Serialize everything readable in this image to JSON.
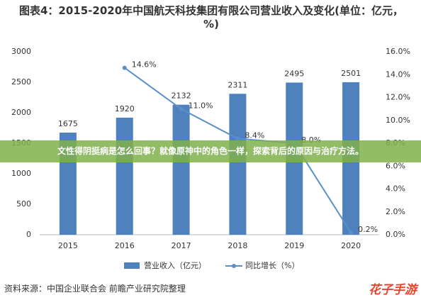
{
  "chart_data": {
    "type": "bar",
    "title": "图表4：2015-2020年中国航天科技集团有限公司营业收入及变化(单位：亿元，%)",
    "categories": [
      "2015",
      "2016",
      "2017",
      "2018",
      "2019",
      "2020"
    ],
    "series": [
      {
        "name": "营业收入（亿元）",
        "color": "#4f81bd",
        "values": [
          1675,
          1920,
          2132,
          2311,
          2495,
          2501
        ]
      },
      {
        "name": "同比增长（%）",
        "type": "line",
        "axis": "y2",
        "color": "#5b8fc9",
        "values": [
          null,
          14.6,
          11.0,
          8.4,
          8.0,
          0.2
        ],
        "value_labels": [
          null,
          "14.6%",
          "11.0%",
          "8.4%",
          "8.0%",
          "0.2%"
        ]
      }
    ],
    "ylim": [
      0,
      3000
    ],
    "yticks": [
      0,
      500,
      1000,
      1500,
      2000,
      2500,
      3000
    ],
    "y2lim": [
      0,
      16
    ],
    "y2ticks": [
      {
        "value": 0,
        "label": "0.0%"
      },
      {
        "value": 2,
        "label": "2.0%"
      },
      {
        "value": 4,
        "label": "4.0%"
      },
      {
        "value": 6,
        "label": "6.0%"
      },
      {
        "value": 8,
        "label": "8.0%"
      },
      {
        "value": 10,
        "label": "10.0%"
      },
      {
        "value": 12,
        "label": "12.0%"
      },
      {
        "value": 14,
        "label": "14.0%"
      },
      {
        "value": 16,
        "label": "16.0%"
      }
    ],
    "source": "资料来源：中国企业联合会 前瞻产业研究院整理"
  },
  "overlay_banner": "文性得阴挺病是怎么回事？就像原神中的角色一样，探索背后的原因与治疗方法。",
  "watermark": "花子手游"
}
